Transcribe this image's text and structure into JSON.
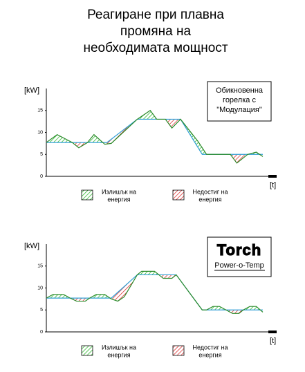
{
  "chart_data": [
    {
      "type": "line",
      "title": [
        "Реагиране при плавна",
        "промяна на",
        "необходимата мощност"
      ],
      "y_label": "[kW]",
      "x_label": "[t]",
      "note": [
        "Обикновенна",
        "горелка с",
        "\"Модулация\""
      ],
      "ylim": [
        0,
        20
      ],
      "yticks": [
        0,
        5,
        10,
        15
      ],
      "xlim": [
        0,
        100
      ],
      "series": [
        {
          "color": "#2f9fd6",
          "x": [
            0,
            28,
            42,
            62,
            72,
            100
          ],
          "values": [
            7.7,
            7.7,
            13,
            13,
            5,
            5
          ]
        },
        {
          "color": "#2a8a2a",
          "x": [
            0,
            5,
            12,
            15,
            19,
            22,
            27,
            30,
            42,
            48,
            51,
            55,
            58,
            62,
            70,
            74,
            85,
            88,
            93,
            97,
            100
          ],
          "values": [
            7.7,
            9.5,
            7.7,
            6.5,
            7.7,
            9.5,
            7.3,
            7.5,
            13,
            15,
            13,
            13,
            11,
            13,
            8,
            5,
            5,
            3,
            5,
            5.5,
            4.5
          ]
        }
      ],
      "legend": [
        {
          "label": [
            "Излишък на",
            "енергия"
          ],
          "color": "#33bb33"
        },
        {
          "label": [
            "Недостиг на",
            "енергия"
          ],
          "color": "#dd3333"
        }
      ]
    },
    {
      "type": "line",
      "y_label": "[kW]",
      "x_label": "[t]",
      "logo": "Torch",
      "note": [
        "Power-o-Temp"
      ],
      "ylim": [
        0,
        20
      ],
      "yticks": [
        0,
        5,
        10,
        15
      ],
      "xlim": [
        0,
        100
      ],
      "series": [
        {
          "color": "#2f9fd6",
          "x": [
            0,
            30,
            42,
            60,
            72,
            100
          ],
          "values": [
            7.7,
            7.7,
            13,
            13,
            5,
            5
          ]
        },
        {
          "color": "#2a8a2a",
          "x": [
            0,
            3,
            8,
            11,
            14,
            18,
            20,
            23,
            27,
            30,
            33,
            36,
            42,
            44,
            50,
            52,
            54,
            58,
            60,
            66,
            72,
            74,
            77,
            80,
            83,
            86,
            89,
            91,
            94,
            97,
            100
          ],
          "values": [
            7.7,
            8.5,
            8.5,
            7.7,
            7,
            7,
            7.7,
            8.5,
            8.5,
            7.5,
            7,
            8,
            13,
            13.8,
            13.8,
            13,
            12.2,
            12.2,
            13,
            9,
            5,
            5,
            5.8,
            5.8,
            5,
            4.2,
            4.2,
            5,
            5.8,
            5.8,
            4.5
          ]
        }
      ],
      "legend": [
        {
          "label": [
            "Излишък на",
            "енергия"
          ],
          "color": "#33bb33"
        },
        {
          "label": [
            "Недостиг на",
            "енергия"
          ],
          "color": "#dd3333"
        }
      ]
    }
  ]
}
